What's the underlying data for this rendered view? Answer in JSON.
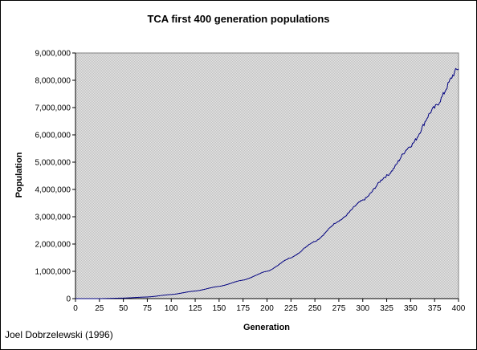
{
  "credit": "Joel Dobrzelewski (1996)",
  "colors": {
    "plot_background": "#c0c0c0",
    "line": "#000080",
    "axis": "#000000"
  },
  "chart_data": {
    "type": "line",
    "title": "TCA first 400 generation populations",
    "xlabel": "Generation",
    "ylabel": "Population",
    "xlim": [
      0,
      400
    ],
    "ylim": [
      0,
      9000000
    ],
    "x_ticks": [
      0,
      25,
      50,
      75,
      100,
      125,
      150,
      175,
      200,
      225,
      250,
      275,
      300,
      325,
      350,
      375,
      400
    ],
    "x_tick_labels": [
      "0",
      "25",
      "50",
      "75",
      "100",
      "125",
      "150",
      "175",
      "200",
      "225",
      "250",
      "275",
      "300",
      "325",
      "350",
      "375",
      "400"
    ],
    "y_ticks": [
      0,
      1000000,
      2000000,
      3000000,
      4000000,
      5000000,
      6000000,
      7000000,
      8000000,
      9000000
    ],
    "y_tick_labels": [
      "0",
      "1,000,000",
      "2,000,000",
      "3,000,000",
      "4,000,000",
      "5,000,000",
      "6,000,000",
      "7,000,000",
      "8,000,000",
      "9,000,000"
    ],
    "grid": false,
    "legend": "none",
    "series": [
      {
        "x": [
          0,
          25,
          50,
          75,
          100,
          125,
          150,
          175,
          200,
          225,
          250,
          275,
          300,
          325,
          350,
          375,
          400
        ],
        "values": [
          0,
          0,
          20000,
          60000,
          150000,
          280000,
          450000,
          680000,
          1000000,
          1500000,
          2100000,
          2850000,
          3600000,
          4500000,
          5600000,
          7000000,
          8450000
        ]
      }
    ]
  }
}
